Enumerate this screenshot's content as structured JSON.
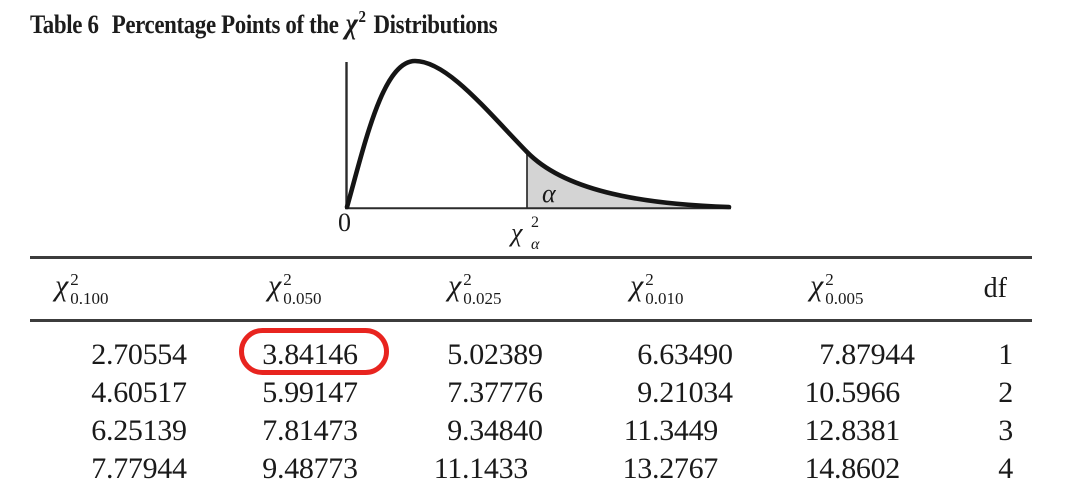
{
  "title": {
    "label": "Table 6",
    "text": "Percentage Points of the",
    "chi": "χ",
    "chi_sup": "2",
    "suffix": "Distributions"
  },
  "diagram": {
    "origin_label": "0",
    "crit_label": {
      "chi": "χ",
      "sup": "2",
      "sub": "α"
    },
    "tail_label": "α",
    "shade_color": "#d4d4d4",
    "curve_color": "#151515"
  },
  "table": {
    "headers": [
      {
        "sym": "χ",
        "sup": "2",
        "sub": "0.100"
      },
      {
        "sym": "χ",
        "sup": "2",
        "sub": "0.050"
      },
      {
        "sym": "χ",
        "sup": "2",
        "sub": "0.025"
      },
      {
        "sym": "χ",
        "sup": "2",
        "sub": "0.010"
      },
      {
        "sym": "χ",
        "sup": "2",
        "sub": "0.005"
      },
      {
        "label": "df"
      }
    ],
    "rows": [
      [
        "2.70554",
        "3.84146",
        "5.02389",
        "6.63490",
        "7.87944",
        "1"
      ],
      [
        "4.60517",
        "5.99147",
        "7.37776",
        "9.21034",
        "10.5966",
        "2"
      ],
      [
        "6.25139",
        "7.81473",
        "9.34840",
        "11.3449",
        "12.8381",
        "3"
      ],
      [
        "7.77944",
        "9.48773",
        "11.1433",
        "13.2767",
        "14.8602",
        "4"
      ]
    ],
    "highlight": {
      "value": "3.84146",
      "row": 1,
      "column": "0.050",
      "color": "#e8241f"
    }
  }
}
